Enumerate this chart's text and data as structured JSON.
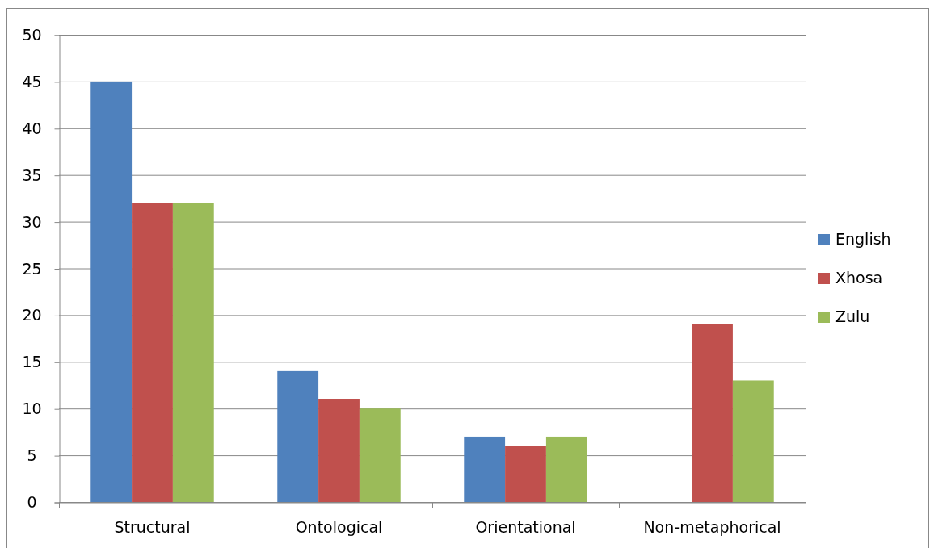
{
  "chart_data": {
    "type": "bar",
    "categories": [
      "Structural",
      "Ontological",
      "Orientational",
      "Non-metaphorical"
    ],
    "series": [
      {
        "name": "English",
        "color": "#4f81bd",
        "values": [
          45,
          14,
          7,
          0
        ]
      },
      {
        "name": "Xhosa",
        "color": "#c0504d",
        "values": [
          32,
          11,
          6,
          19
        ]
      },
      {
        "name": "Zulu",
        "color": "#9bbb59",
        "values": [
          32,
          10,
          7,
          13
        ]
      }
    ],
    "ylim": [
      0,
      50
    ],
    "yticks": [
      0,
      5,
      10,
      15,
      20,
      25,
      30,
      35,
      40,
      45,
      50
    ],
    "grid": "y",
    "legend": "right"
  }
}
